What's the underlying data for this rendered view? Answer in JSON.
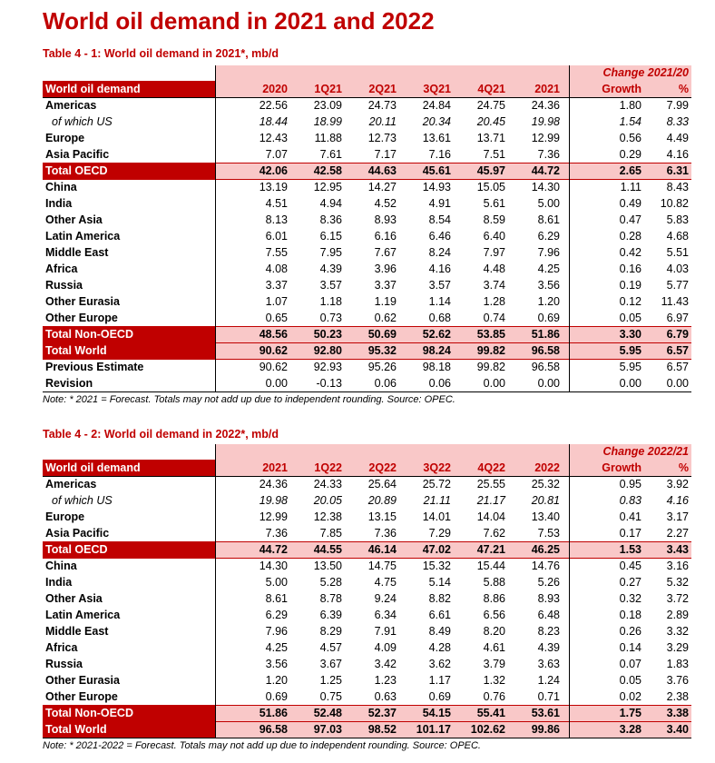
{
  "title": "World oil demand in 2021 and 2022",
  "table1": {
    "caption": "Table 4 - 1: World oil demand in 2021*, mb/d",
    "change_header": "Change 2021/20",
    "header": {
      "label": "World oil demand",
      "cols": [
        "2020",
        "1Q21",
        "2Q21",
        "3Q21",
        "4Q21",
        "2021",
        "Growth",
        "%"
      ]
    },
    "rows": [
      {
        "label": "Americas",
        "values": [
          "22.56",
          "23.09",
          "24.73",
          "24.84",
          "24.75",
          "24.36",
          "1.80",
          "7.99"
        ]
      },
      {
        "label": "of which US",
        "values": [
          "18.44",
          "18.99",
          "20.11",
          "20.34",
          "20.45",
          "19.98",
          "1.54",
          "8.33"
        ],
        "italic": true
      },
      {
        "label": "Europe",
        "values": [
          "12.43",
          "11.88",
          "12.73",
          "13.61",
          "13.71",
          "12.99",
          "0.56",
          "4.49"
        ]
      },
      {
        "label": "Asia Pacific",
        "values": [
          "7.07",
          "7.61",
          "7.17",
          "7.16",
          "7.51",
          "7.36",
          "0.29",
          "4.16"
        ]
      },
      {
        "label": "Total OECD",
        "values": [
          "42.06",
          "42.58",
          "44.63",
          "45.61",
          "45.97",
          "44.72",
          "2.65",
          "6.31"
        ],
        "total": true
      },
      {
        "label": "China",
        "values": [
          "13.19",
          "12.95",
          "14.27",
          "14.93",
          "15.05",
          "14.30",
          "1.11",
          "8.43"
        ]
      },
      {
        "label": "India",
        "values": [
          "4.51",
          "4.94",
          "4.52",
          "4.91",
          "5.61",
          "5.00",
          "0.49",
          "10.82"
        ]
      },
      {
        "label": "Other Asia",
        "values": [
          "8.13",
          "8.36",
          "8.93",
          "8.54",
          "8.59",
          "8.61",
          "0.47",
          "5.83"
        ]
      },
      {
        "label": "Latin America",
        "values": [
          "6.01",
          "6.15",
          "6.16",
          "6.46",
          "6.40",
          "6.29",
          "0.28",
          "4.68"
        ]
      },
      {
        "label": "Middle East",
        "values": [
          "7.55",
          "7.95",
          "7.67",
          "8.24",
          "7.97",
          "7.96",
          "0.42",
          "5.51"
        ]
      },
      {
        "label": "Africa",
        "values": [
          "4.08",
          "4.39",
          "3.96",
          "4.16",
          "4.48",
          "4.25",
          "0.16",
          "4.03"
        ]
      },
      {
        "label": "Russia",
        "values": [
          "3.37",
          "3.57",
          "3.37",
          "3.57",
          "3.74",
          "3.56",
          "0.19",
          "5.77"
        ]
      },
      {
        "label": "Other Eurasia",
        "values": [
          "1.07",
          "1.18",
          "1.19",
          "1.14",
          "1.28",
          "1.20",
          "0.12",
          "11.43"
        ]
      },
      {
        "label": "Other Europe",
        "values": [
          "0.65",
          "0.73",
          "0.62",
          "0.68",
          "0.74",
          "0.69",
          "0.05",
          "6.97"
        ]
      },
      {
        "label": "Total Non-OECD",
        "values": [
          "48.56",
          "50.23",
          "50.69",
          "52.62",
          "53.85",
          "51.86",
          "3.30",
          "6.79"
        ],
        "total": true
      },
      {
        "label": "Total World",
        "values": [
          "90.62",
          "92.80",
          "95.32",
          "98.24",
          "99.82",
          "96.58",
          "5.95",
          "6.57"
        ],
        "total": true
      },
      {
        "label": "Previous Estimate",
        "values": [
          "90.62",
          "92.93",
          "95.26",
          "98.18",
          "99.82",
          "96.58",
          "5.95",
          "6.57"
        ]
      },
      {
        "label": "Revision",
        "values": [
          "0.00",
          "-0.13",
          "0.06",
          "0.06",
          "0.00",
          "0.00",
          "0.00",
          "0.00"
        ]
      }
    ],
    "note": "Note: * 2021 = Forecast. Totals may not add up due to independent rounding. Source: OPEC."
  },
  "table2": {
    "caption": "Table 4 - 2: World oil demand in 2022*, mb/d",
    "change_header": "Change 2022/21",
    "header": {
      "label": "World oil demand",
      "cols": [
        "2021",
        "1Q22",
        "2Q22",
        "3Q22",
        "4Q22",
        "2022",
        "Growth",
        "%"
      ]
    },
    "rows": [
      {
        "label": "Americas",
        "values": [
          "24.36",
          "24.33",
          "25.64",
          "25.72",
          "25.55",
          "25.32",
          "0.95",
          "3.92"
        ]
      },
      {
        "label": "of which US",
        "values": [
          "19.98",
          "20.05",
          "20.89",
          "21.11",
          "21.17",
          "20.81",
          "0.83",
          "4.16"
        ],
        "italic": true
      },
      {
        "label": "Europe",
        "values": [
          "12.99",
          "12.38",
          "13.15",
          "14.01",
          "14.04",
          "13.40",
          "0.41",
          "3.17"
        ]
      },
      {
        "label": "Asia Pacific",
        "values": [
          "7.36",
          "7.85",
          "7.36",
          "7.29",
          "7.62",
          "7.53",
          "0.17",
          "2.27"
        ]
      },
      {
        "label": "Total OECD",
        "values": [
          "44.72",
          "44.55",
          "46.14",
          "47.02",
          "47.21",
          "46.25",
          "1.53",
          "3.43"
        ],
        "total": true
      },
      {
        "label": "China",
        "values": [
          "14.30",
          "13.50",
          "14.75",
          "15.32",
          "15.44",
          "14.76",
          "0.45",
          "3.16"
        ]
      },
      {
        "label": "India",
        "values": [
          "5.00",
          "5.28",
          "4.75",
          "5.14",
          "5.88",
          "5.26",
          "0.27",
          "5.32"
        ]
      },
      {
        "label": "Other Asia",
        "values": [
          "8.61",
          "8.78",
          "9.24",
          "8.82",
          "8.86",
          "8.93",
          "0.32",
          "3.72"
        ]
      },
      {
        "label": "Latin America",
        "values": [
          "6.29",
          "6.39",
          "6.34",
          "6.61",
          "6.56",
          "6.48",
          "0.18",
          "2.89"
        ]
      },
      {
        "label": "Middle East",
        "values": [
          "7.96",
          "8.29",
          "7.91",
          "8.49",
          "8.20",
          "8.23",
          "0.26",
          "3.32"
        ]
      },
      {
        "label": "Africa",
        "values": [
          "4.25",
          "4.57",
          "4.09",
          "4.28",
          "4.61",
          "4.39",
          "0.14",
          "3.29"
        ]
      },
      {
        "label": "Russia",
        "values": [
          "3.56",
          "3.67",
          "3.42",
          "3.62",
          "3.79",
          "3.63",
          "0.07",
          "1.83"
        ]
      },
      {
        "label": "Other Eurasia",
        "values": [
          "1.20",
          "1.25",
          "1.23",
          "1.17",
          "1.32",
          "1.24",
          "0.05",
          "3.76"
        ]
      },
      {
        "label": "Other Europe",
        "values": [
          "0.69",
          "0.75",
          "0.63",
          "0.69",
          "0.76",
          "0.71",
          "0.02",
          "2.38"
        ]
      },
      {
        "label": "Total Non-OECD",
        "values": [
          "51.86",
          "52.48",
          "52.37",
          "54.15",
          "55.41",
          "53.61",
          "1.75",
          "3.38"
        ],
        "total": true
      },
      {
        "label": "Total World",
        "values": [
          "96.58",
          "97.03",
          "98.52",
          "101.17",
          "102.62",
          "99.86",
          "3.28",
          "3.40"
        ],
        "total": true
      }
    ],
    "note": "Note: * 2021-2022 = Forecast. Totals may not add up due to independent rounding. Source: OPEC."
  }
}
